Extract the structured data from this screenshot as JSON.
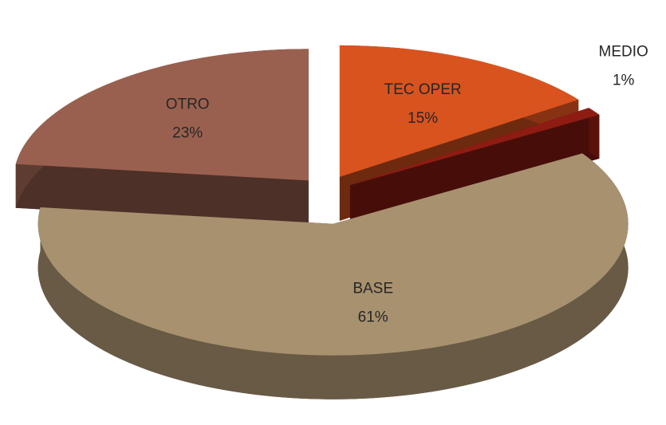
{
  "chart_data": {
    "type": "pie",
    "categories": [
      "TEC OPER",
      "MEDIO",
      "BASE",
      "OTRO"
    ],
    "values": [
      15,
      1,
      61,
      23
    ],
    "value_labels": [
      "15%",
      "1%",
      "61%",
      "23%"
    ],
    "colors": [
      "#d9531e",
      "#8e1c12",
      "#a8916f",
      "#9a604f"
    ]
  }
}
